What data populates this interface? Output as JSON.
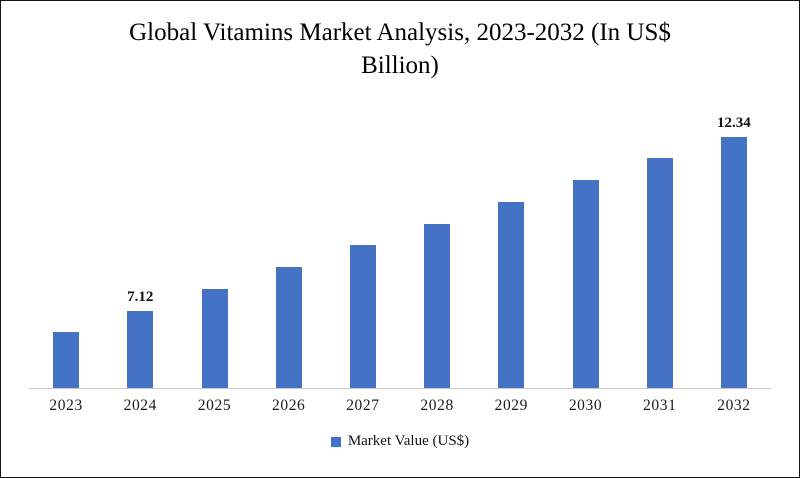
{
  "title": "Global Vitamins Market Analysis, 2023-2032 (In US$ Billion)",
  "legend": {
    "label": "Market Value (US$)",
    "swatch_color": "#4472C4"
  },
  "chart_data": {
    "type": "bar",
    "title": "Global Vitamins Market Analysis, 2023-2032 (In US$ Billion)",
    "categories": [
      "2023",
      "2024",
      "2025",
      "2026",
      "2027",
      "2028",
      "2029",
      "2030",
      "2031",
      "2032"
    ],
    "values": [
      6.47,
      7.12,
      7.77,
      8.43,
      9.08,
      9.73,
      10.38,
      11.04,
      11.69,
      12.34
    ],
    "series_name": "Market Value (US$)",
    "data_labels": {
      "2024": "7.12",
      "2032": "12.34"
    },
    "xlabel": "",
    "ylabel": "",
    "ylim": [
      4.8,
      13.5
    ],
    "grid": false,
    "bar_color": "#4472C4",
    "legend_position": "bottom"
  }
}
